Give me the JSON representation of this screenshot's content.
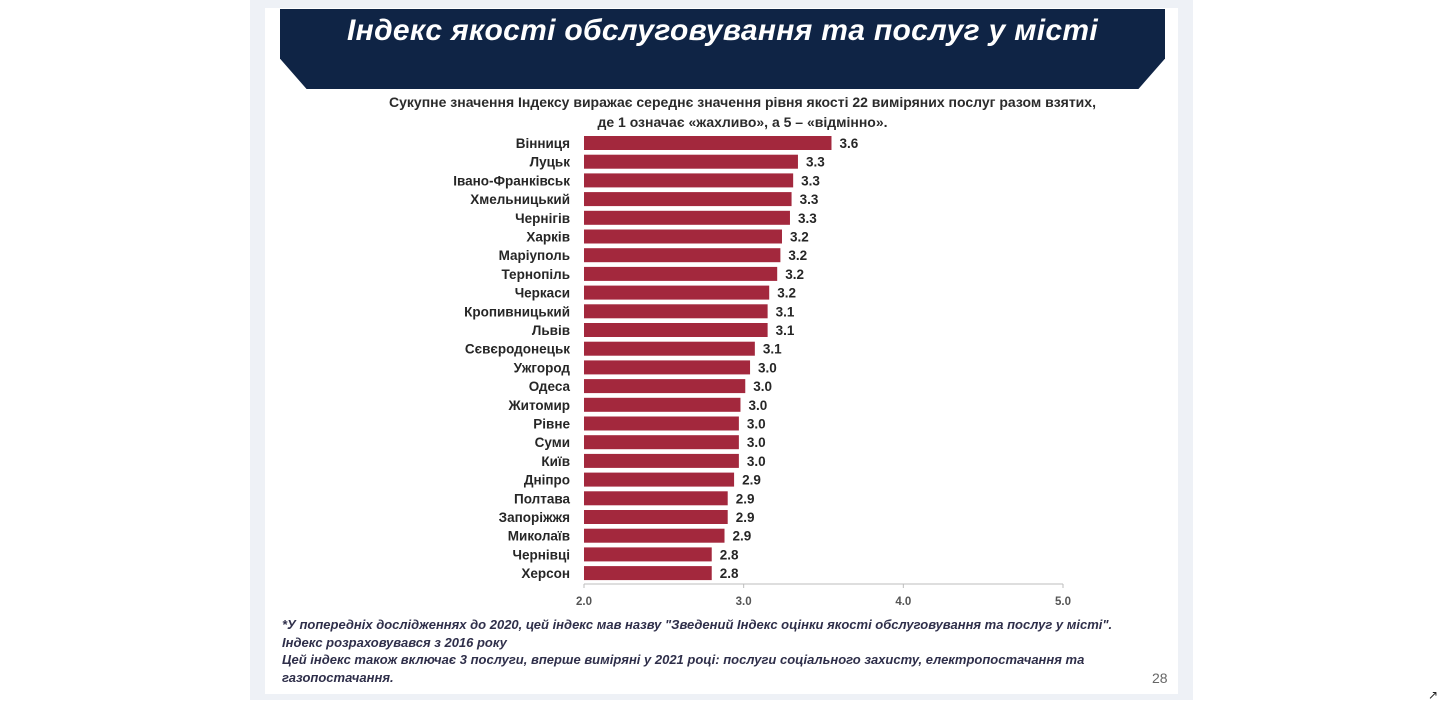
{
  "title": "Індекс якості обслуговування та послуг у місті",
  "subtitle_line1": "Сукупне значення Індексу виражає середнє значення рівня якості 22 виміряних послуг разом взятих,",
  "subtitle_line2": "де 1 означає «жахливо», а 5 – «відмінно».",
  "footnotes": {
    "line1": "*У попередніх дослідженнях до 2020, цей індекс мав назву \"Зведений Індекс оцінки якості обслуговування та послуг у місті\".",
    "line2": "Індекс розраховувався з 2016 року",
    "line3": "Цей індекс також включає 3 послуги, вперше виміряні у 2021 році: послуги соціального захисту, електропостачання та",
    "line4": "газопостачання."
  },
  "page_number": "28",
  "corner_icon": "expand-arrow-icon",
  "colors": {
    "bar": "#a3283d",
    "banner": "#0f2445"
  },
  "chart_data": {
    "type": "bar",
    "orientation": "horizontal",
    "categories": [
      "Вінниця",
      "Луцьк",
      "Івано-Франківськ",
      "Хмельницький",
      "Чернігів",
      "Харків",
      "Маріуполь",
      "Тернопіль",
      "Черкаси",
      "Кропивницький",
      "Львів",
      "Сєвєродонецьк",
      "Ужгород",
      "Одеса",
      "Житомир",
      "Рівне",
      "Суми",
      "Київ",
      "Дніпро",
      "Полтава",
      "Запоріжжя",
      "Миколаїв",
      "Чернівці",
      "Херсон"
    ],
    "values": [
      3.55,
      3.34,
      3.31,
      3.3,
      3.29,
      3.24,
      3.23,
      3.21,
      3.16,
      3.15,
      3.15,
      3.07,
      3.04,
      3.01,
      2.98,
      2.97,
      2.97,
      2.97,
      2.94,
      2.9,
      2.9,
      2.88,
      2.8,
      2.8
    ],
    "value_labels": [
      "3.6",
      "3.3",
      "3.3",
      "3.3",
      "3.3",
      "3.2",
      "3.2",
      "3.2",
      "3.2",
      "3.1",
      "3.1",
      "3.1",
      "3.0",
      "3.0",
      "3.0",
      "3.0",
      "3.0",
      "3.0",
      "2.9",
      "2.9",
      "2.9",
      "2.9",
      "2.8",
      "2.8"
    ],
    "xlim": [
      2.0,
      5.0
    ],
    "x_ticks": [
      "2.0",
      "3.0",
      "4.0",
      "5.0"
    ],
    "grid": false
  }
}
